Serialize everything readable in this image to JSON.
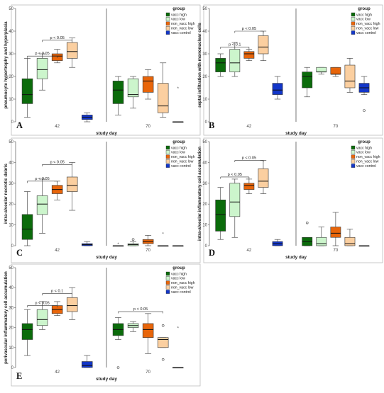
{
  "colors": {
    "vacc high": "#0b6b0b",
    "vacc low": "#ccf5cc",
    "non_vacc high": "#e8650a",
    "non_vacc low": "#fbcfa0",
    "vacc control": "#1236c9"
  },
  "chart_data": [
    {
      "type": "box",
      "panel_letter": "A",
      "ylabel": "pneumocyte hypertrophy and hyperplasia",
      "xlabel": "study day",
      "ylim": [
        0,
        50
      ],
      "yticks": [
        0,
        10,
        20,
        30,
        40,
        50
      ],
      "legend_title": "group",
      "legend": [
        "vacc high",
        "vacc low",
        "non_vacc high",
        "non_vacc low",
        "vacc control"
      ],
      "legend_position": "top-right",
      "days": [
        {
          "label": "42",
          "groups": [
            {
              "name": "vacc high",
              "min": 2,
              "q1": 8,
              "median": 12,
              "q3": 19,
              "max": 28
            },
            {
              "name": "vacc low",
              "min": 14,
              "q1": 19,
              "median": 23,
              "q3": 28,
              "max": 30
            },
            {
              "name": "non_vacc high",
              "min": 26,
              "q1": 27,
              "median": 29,
              "q3": 30,
              "max": 32
            },
            {
              "name": "non_vacc low",
              "min": 24,
              "q1": 28,
              "median": 31,
              "q3": 35,
              "max": 37
            },
            {
              "name": "vacc control",
              "min": 0,
              "q1": 1,
              "median": 2,
              "q3": 3,
              "max": 4
            }
          ]
        },
        {
          "label": "70",
          "groups": [
            {
              "name": "vacc high",
              "min": 3,
              "q1": 8,
              "median": 14,
              "q3": 18,
              "max": 20
            },
            {
              "name": "vacc low",
              "min": 6,
              "q1": 11,
              "median": 12,
              "q3": 19,
              "max": 20
            },
            {
              "name": "non_vacc high",
              "min": 10,
              "q1": 13,
              "median": 18,
              "q3": 20,
              "max": 23
            },
            {
              "name": "non_vacc low",
              "min": 2,
              "q1": 4,
              "median": 7,
              "q3": 17,
              "max": 26
            },
            {
              "name": "vacc control",
              "min": 0,
              "q1": 0,
              "median": 0,
              "q3": 0,
              "max": 0,
              "outliers": [
                15
              ],
              "outlier_mark": "*"
            }
          ]
        }
      ],
      "annotations": [
        {
          "text": "p < 0.05",
          "day": "42",
          "from": 0,
          "to": 2,
          "level": 29
        },
        {
          "text": "p < 0.05",
          "day": "42",
          "from": 1,
          "to": 3,
          "level": 36
        }
      ]
    },
    {
      "type": "box",
      "panel_letter": "B",
      "ylabel": "septal infiltration with mononuclear cells",
      "xlabel": "study day",
      "ylim": [
        0,
        50
      ],
      "yticks": [
        0,
        10,
        20,
        30,
        40,
        50
      ],
      "legend_title": "group",
      "legend": [
        "vacc high",
        "vacc low",
        "non_vacc high",
        "non_vacc low",
        "vacc control"
      ],
      "legend_position": "top-right",
      "days": [
        {
          "label": "42",
          "groups": [
            {
              "name": "vacc high",
              "min": 20,
              "q1": 22,
              "median": 26,
              "q3": 28,
              "max": 30
            },
            {
              "name": "vacc low",
              "min": 20,
              "q1": 22,
              "median": 26,
              "q3": 32,
              "max": 35
            },
            {
              "name": "non_vacc high",
              "min": 27,
              "q1": 28,
              "median": 30,
              "q3": 31,
              "max": 32
            },
            {
              "name": "non_vacc low",
              "min": 27,
              "q1": 30,
              "median": 33,
              "q3": 38,
              "max": 40
            },
            {
              "name": "vacc control",
              "min": 10,
              "q1": 12,
              "median": 14,
              "q3": 17,
              "max": 20
            }
          ]
        },
        {
          "label": "70",
          "groups": [
            {
              "name": "vacc high",
              "min": 11,
              "q1": 15,
              "median": 20,
              "q3": 22,
              "max": 24
            },
            {
              "name": "vacc low",
              "min": 21,
              "q1": 22,
              "median": 22,
              "q3": 24,
              "max": 24
            },
            {
              "name": "non_vacc high",
              "min": 20,
              "q1": 21,
              "median": 21,
              "q3": 24,
              "max": 24
            },
            {
              "name": "non_vacc low",
              "min": 13,
              "q1": 15,
              "median": 18,
              "q3": 25,
              "max": 28
            },
            {
              "name": "vacc control",
              "min": 12,
              "q1": 13,
              "median": 15,
              "q3": 17,
              "max": 20,
              "outliers": [
                5
              ],
              "outlier_mark": "o"
            }
          ]
        }
      ],
      "annotations": [
        {
          "text": "p < 0.1",
          "day": "42",
          "from": 0,
          "to": 2,
          "level": 33
        },
        {
          "text": "p < 0.05",
          "day": "42",
          "from": 1,
          "to": 3,
          "level": 40
        }
      ]
    },
    {
      "type": "box",
      "panel_letter": "C",
      "ylabel": "intra-alveolar necrotic debris",
      "xlabel": "study day",
      "ylim": [
        0,
        50
      ],
      "yticks": [
        0,
        10,
        20,
        30,
        40,
        50
      ],
      "legend_title": "group",
      "legend": [
        "vacc high",
        "vacc low",
        "non_vacc high",
        "non_vacc low",
        "vacc control"
      ],
      "legend_position": "top-right",
      "days": [
        {
          "label": "42",
          "groups": [
            {
              "name": "vacc high",
              "min": 0,
              "q1": 3,
              "median": 8,
              "q3": 15,
              "max": 26
            },
            {
              "name": "vacc low",
              "min": 6,
              "q1": 15,
              "median": 20,
              "q3": 24,
              "max": 32
            },
            {
              "name": "non_vacc high",
              "min": 22,
              "q1": 25,
              "median": 27,
              "q3": 29,
              "max": 31
            },
            {
              "name": "non_vacc low",
              "min": 17,
              "q1": 26,
              "median": 29,
              "q3": 33,
              "max": 40
            },
            {
              "name": "vacc control",
              "min": 0,
              "q1": 0,
              "median": 0.5,
              "q3": 1,
              "max": 2
            }
          ]
        },
        {
          "label": "70",
          "groups": [
            {
              "name": "vacc high",
              "min": 0,
              "q1": 0,
              "median": 0,
              "q3": 0,
              "max": 0,
              "outliers": [
                1
              ],
              "outlier_mark": "*"
            },
            {
              "name": "vacc low",
              "min": 0,
              "q1": 0,
              "median": 0.5,
              "q3": 1,
              "max": 2,
              "outliers": [
                3
              ],
              "outlier_mark": "o"
            },
            {
              "name": "non_vacc high",
              "min": 0,
              "q1": 1,
              "median": 2,
              "q3": 3,
              "max": 5
            },
            {
              "name": "non_vacc low",
              "min": 0,
              "q1": 0,
              "median": 0,
              "q3": 0,
              "max": 0,
              "outliers": [
                6
              ],
              "outlier_mark": "*"
            },
            {
              "name": "vacc control",
              "min": 0,
              "q1": 0,
              "median": 0,
              "q3": 0,
              "max": 0
            }
          ]
        }
      ],
      "annotations": [
        {
          "text": "p < 0.05",
          "day": "42",
          "from": 0,
          "to": 2,
          "level": 31
        },
        {
          "text": "p < 0.05",
          "day": "42",
          "from": 1,
          "to": 3,
          "level": 39
        }
      ]
    },
    {
      "type": "box",
      "panel_letter": "D",
      "ylabel": "intra-alveolar inflammatory cell accumulation",
      "xlabel": "study day",
      "ylim": [
        0,
        50
      ],
      "yticks": [
        0,
        10,
        20,
        30,
        40,
        50
      ],
      "legend_title": "group",
      "legend": [
        "vacc high",
        "vacc low",
        "non_vacc high",
        "non_vacc low",
        "vacc control"
      ],
      "legend_position": "top-right",
      "days": [
        {
          "label": "42",
          "groups": [
            {
              "name": "vacc high",
              "min": 3,
              "q1": 7,
              "median": 15,
              "q3": 22,
              "max": 28
            },
            {
              "name": "vacc low",
              "min": 4,
              "q1": 14,
              "median": 21,
              "q3": 30,
              "max": 32
            },
            {
              "name": "non_vacc high",
              "min": 25,
              "q1": 27,
              "median": 29,
              "q3": 30,
              "max": 32
            },
            {
              "name": "non_vacc low",
              "min": 25,
              "q1": 28,
              "median": 31,
              "q3": 37,
              "max": 41
            },
            {
              "name": "vacc control",
              "min": 0,
              "q1": 0,
              "median": 1,
              "q3": 2,
              "max": 3
            }
          ]
        },
        {
          "label": "70",
          "groups": [
            {
              "name": "vacc high",
              "min": 0,
              "q1": 0,
              "median": 2,
              "q3": 4,
              "max": 4,
              "outliers": [
                11
              ],
              "outlier_mark": "o"
            },
            {
              "name": "vacc low",
              "min": 0,
              "q1": 0,
              "median": 1,
              "q3": 4,
              "max": 9
            },
            {
              "name": "non_vacc high",
              "min": 0,
              "q1": 4,
              "median": 6,
              "q3": 9,
              "max": 16
            },
            {
              "name": "non_vacc low",
              "min": 0,
              "q1": 0,
              "median": 1,
              "q3": 4,
              "max": 8
            },
            {
              "name": "vacc control",
              "min": 0,
              "q1": 0,
              "median": 0,
              "q3": 0,
              "max": 0
            }
          ]
        }
      ],
      "annotations": [
        {
          "text": "p < 0.05",
          "day": "42",
          "from": 0,
          "to": 2,
          "level": 33
        },
        {
          "text": "p < 0.05",
          "day": "42",
          "from": 1,
          "to": 3,
          "level": 41
        }
      ]
    },
    {
      "type": "box",
      "panel_letter": "E",
      "ylabel": "perivascular inflammatory cell accumulation",
      "xlabel": "study day",
      "ylim": [
        0,
        50
      ],
      "yticks": [
        0,
        10,
        20,
        30,
        40,
        50
      ],
      "legend_title": "group",
      "legend": [
        "vacc high",
        "vacc low",
        "non_vacc high",
        "non_vacc low",
        "vacc control"
      ],
      "legend_position": "top-right",
      "days": [
        {
          "label": "42",
          "groups": [
            {
              "name": "vacc high",
              "min": 6,
              "q1": 14,
              "median": 19,
              "q3": 22,
              "max": 29
            },
            {
              "name": "vacc low",
              "min": 19,
              "q1": 21,
              "median": 24,
              "q3": 29,
              "max": 33
            },
            {
              "name": "non_vacc high",
              "min": 26,
              "q1": 27,
              "median": 29,
              "q3": 31,
              "max": 33
            },
            {
              "name": "non_vacc low",
              "min": 24,
              "q1": 28,
              "median": 31,
              "q3": 35,
              "max": 40
            },
            {
              "name": "vacc control",
              "min": 0,
              "q1": 0,
              "median": 1,
              "q3": 3,
              "max": 6
            }
          ]
        },
        {
          "label": "70",
          "groups": [
            {
              "name": "vacc high",
              "min": 14,
              "q1": 16,
              "median": 19,
              "q3": 22,
              "max": 25,
              "outliers": [
                0
              ],
              "outlier_mark": "o"
            },
            {
              "name": "vacc low",
              "min": 18,
              "q1": 20,
              "median": 21,
              "q3": 22,
              "max": 23
            },
            {
              "name": "non_vacc high",
              "min": 7,
              "q1": 15,
              "median": 19,
              "q3": 22,
              "max": 27
            },
            {
              "name": "non_vacc low",
              "min": 10,
              "q1": 10,
              "median": 14,
              "q3": 15,
              "max": 15,
              "outliers": [
                21,
                4
              ],
              "outlier_mark": "o"
            },
            {
              "name": "vacc control",
              "min": 0,
              "q1": 0,
              "median": 0,
              "q3": 0,
              "max": 0,
              "outliers": [
                20
              ],
              "outlier_mark": "*"
            }
          ]
        }
      ],
      "annotations": [
        {
          "text": "p < 0.05",
          "day": "42",
          "from": 0,
          "to": 2,
          "level": 31
        },
        {
          "text": "p < 0.1",
          "day": "42",
          "from": 1,
          "to": 3,
          "level": 37
        },
        {
          "text": "p < 0.05",
          "day": "70",
          "from": 0,
          "to": 3,
          "level": 28
        }
      ]
    }
  ]
}
